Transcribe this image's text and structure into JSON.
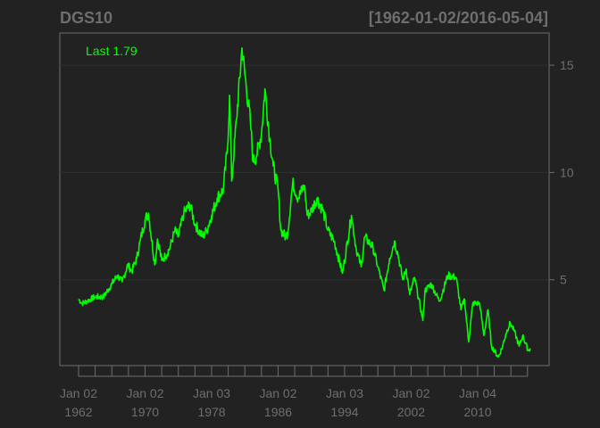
{
  "chart_data": {
    "type": "line",
    "title": "DGS10",
    "date_range": "[1962-01-02/2016-05-04]",
    "last_label": "Last 1.79",
    "x_start": "1962-01-02",
    "x_end": "2016-05-04",
    "ylim": [
      1.0,
      16.5
    ],
    "y_ticks": [
      5,
      10,
      15
    ],
    "x_ticks": [
      {
        "date": "1962-01-02",
        "line1": "Jan 02",
        "line2": "1962"
      },
      {
        "date": "1970-01-02",
        "line1": "Jan 02",
        "line2": "1970"
      },
      {
        "date": "1978-01-03",
        "line1": "Jan 03",
        "line2": "1978"
      },
      {
        "date": "1986-01-02",
        "line1": "Jan 02",
        "line2": "1986"
      },
      {
        "date": "1994-01-03",
        "line1": "Jan 03",
        "line2": "1994"
      },
      {
        "date": "2002-01-02",
        "line1": "Jan 02",
        "line2": "2002"
      },
      {
        "date": "2010-01-04",
        "line1": "Jan 04",
        "line2": "2010"
      }
    ],
    "minor_tick_years": [
      1962,
      1964,
      1966,
      1968,
      1970,
      1972,
      1974,
      1976,
      1978,
      1980,
      1982,
      1984,
      1986,
      1988,
      1990,
      1992,
      1994,
      1996,
      1998,
      2000,
      2002,
      2004,
      2006,
      2008,
      2010,
      2012,
      2014,
      2016
    ],
    "grid": true,
    "line_color": "#00ff00",
    "background_color": "#222222",
    "axis_color": "#6e6e6e",
    "series": [
      {
        "x": [
          "1962-01",
          "1962-06",
          "1963-01",
          "1964-01",
          "1965-01",
          "1966-01",
          "1966-09",
          "1967-04",
          "1967-12",
          "1968-06",
          "1969-01",
          "1969-06",
          "1970-01",
          "1970-06",
          "1971-03",
          "1971-07",
          "1972-01",
          "1972-06",
          "1973-01",
          "1973-08",
          "1974-01",
          "1974-09",
          "1975-06",
          "1976-01",
          "1976-12",
          "1977-06",
          "1978-01",
          "1978-09",
          "1979-06",
          "1979-12",
          "1980-03",
          "1980-06",
          "1981-01",
          "1981-09",
          "1982-03",
          "1982-09",
          "1983-01",
          "1983-06",
          "1984-01",
          "1984-06",
          "1985-01",
          "1985-06",
          "1986-01",
          "1986-05",
          "1986-12",
          "1987-03",
          "1987-10",
          "1988-06",
          "1989-03",
          "1989-07",
          "1990-01",
          "1990-09",
          "1991-06",
          "1992-01",
          "1992-10",
          "1993-10",
          "1994-11",
          "1995-06",
          "1996-01",
          "1996-06",
          "1997-06",
          "1998-01",
          "1998-10",
          "1999-06",
          "2000-01",
          "2000-06",
          "2001-01",
          "2001-06",
          "2001-11",
          "2002-06",
          "2003-06",
          "2003-09",
          "2004-06",
          "2005-06",
          "2006-06",
          "2007-06",
          "2008-01",
          "2008-06",
          "2008-12",
          "2009-06",
          "2010-04",
          "2010-10",
          "2011-04",
          "2011-09",
          "2012-07",
          "2013-01",
          "2013-06",
          "2013-12",
          "2014-06",
          "2015-01",
          "2015-06",
          "2016-02",
          "2016-05"
        ],
        "y": [
          4.1,
          3.9,
          4.0,
          4.2,
          4.2,
          4.8,
          5.2,
          4.9,
          5.7,
          5.4,
          6.0,
          6.8,
          7.8,
          8.1,
          5.7,
          6.9,
          5.9,
          6.1,
          6.5,
          7.3,
          7.0,
          8.1,
          8.5,
          7.6,
          7.0,
          7.3,
          8.0,
          8.8,
          9.2,
          11.2,
          13.6,
          9.6,
          12.5,
          15.8,
          14.0,
          12.4,
          10.5,
          10.8,
          11.8,
          13.9,
          11.6,
          10.3,
          9.2,
          7.3,
          7.0,
          7.2,
          9.5,
          8.8,
          9.4,
          8.0,
          8.2,
          8.8,
          8.2,
          7.3,
          6.8,
          5.3,
          8.0,
          6.4,
          5.6,
          7.0,
          6.5,
          5.6,
          4.5,
          6.0,
          6.8,
          6.2,
          5.0,
          5.5,
          4.3,
          5.1,
          3.1,
          4.5,
          4.8,
          4.0,
          5.2,
          5.1,
          3.6,
          4.1,
          2.1,
          3.9,
          3.9,
          2.4,
          3.6,
          1.9,
          1.4,
          1.9,
          2.5,
          3.0,
          2.6,
          1.9,
          2.4,
          1.7,
          1.8
        ]
      }
    ]
  }
}
